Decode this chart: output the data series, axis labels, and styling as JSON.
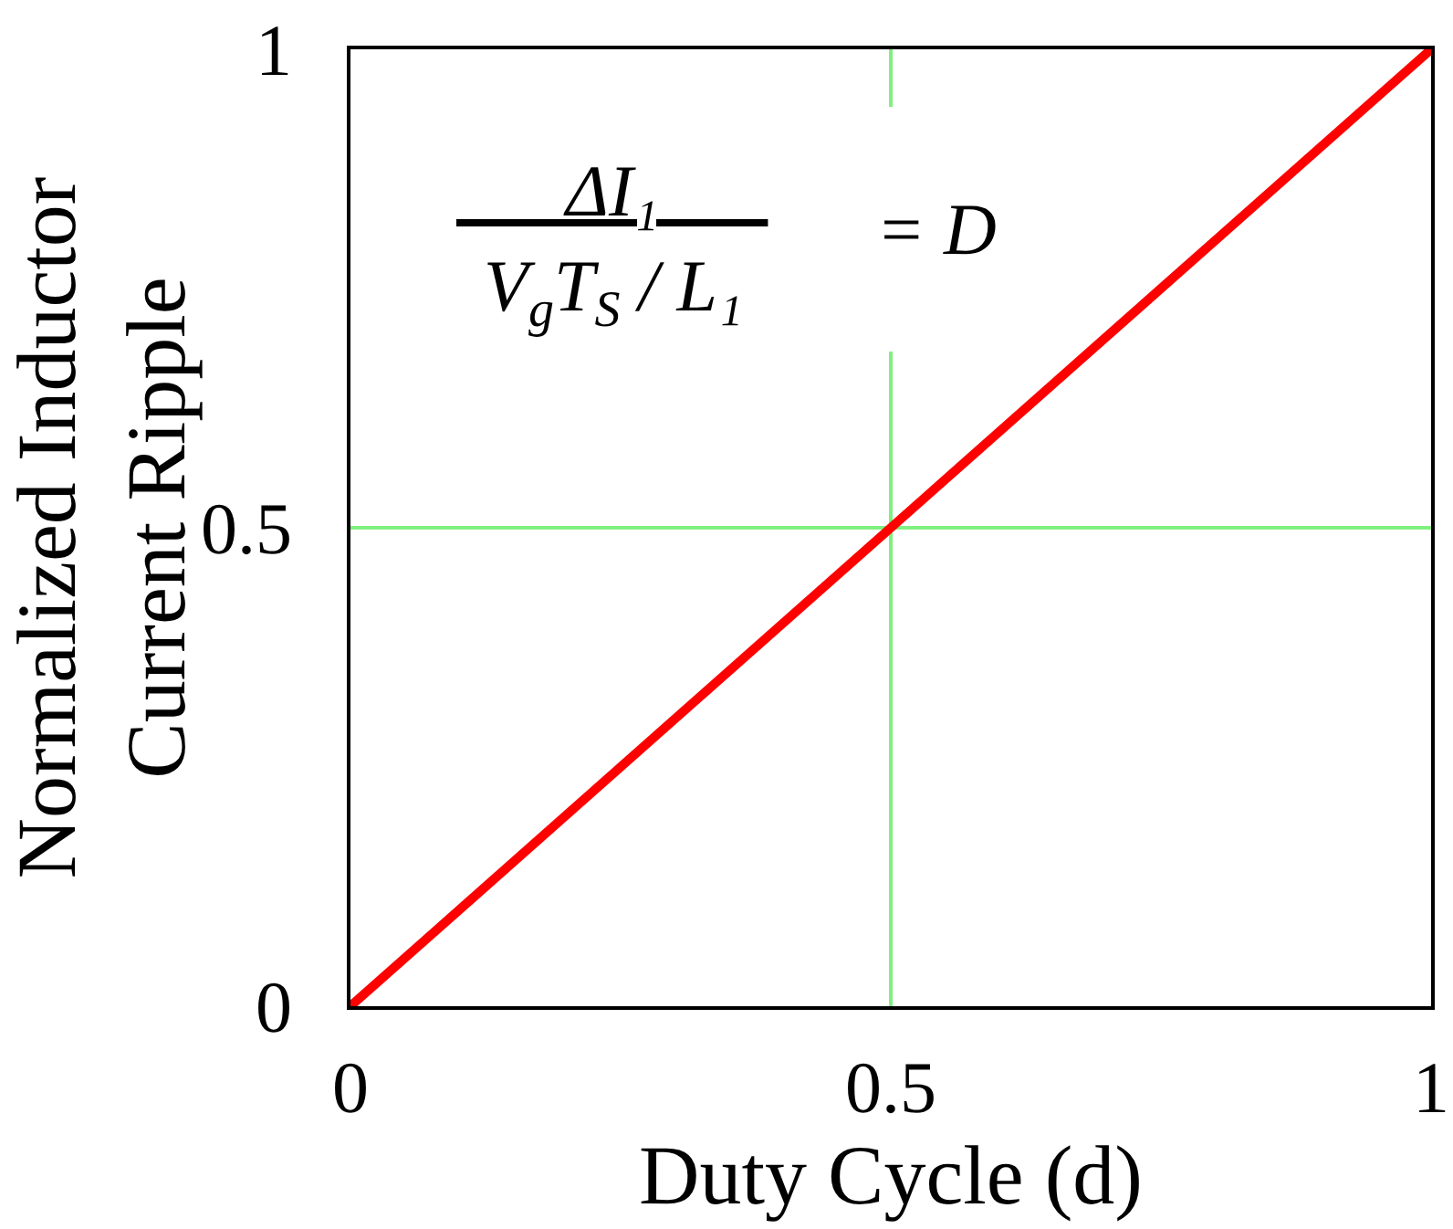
{
  "chart_data": {
    "type": "line",
    "xlabel": "Duty Cycle (d)",
    "ylabel": "Normalized Inductor\nCurrent Ripple",
    "x": [
      0,
      1
    ],
    "series": [
      {
        "color": "#ff0000",
        "values": [
          0,
          1
        ]
      }
    ],
    "xlim": [
      0,
      1
    ],
    "ylim": [
      0,
      1
    ],
    "xticks": [
      0,
      0.5,
      1
    ],
    "yticks": [
      0,
      0.5,
      1
    ],
    "grid": true,
    "marker": "none",
    "line_style": "solid",
    "annotations": [
      "ΔI₁",
      "V$_{g}$T$_{S}$ / L₁",
      "= D"
    ]
  }
}
